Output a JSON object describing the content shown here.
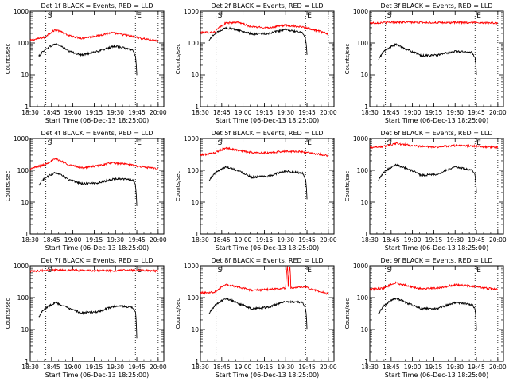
{
  "chart_data": [
    {
      "type": "line",
      "title": "Det 1f BLACK = Events, RED = LLD",
      "xlabel": "Start Time (06-Dec-13 18:25:00)",
      "ylabel": "Counts/sec",
      "y_scale": "log",
      "ylim": [
        1,
        1000
      ],
      "yticks": [
        "1",
        "10",
        "100",
        "1000"
      ],
      "xlim": [
        18.5,
        20.0667
      ],
      "xticks": [
        "18:30",
        "18:45",
        "19:00",
        "19:15",
        "19:30",
        "19:45",
        "20:00"
      ],
      "markers": [
        {
          "time": "18:41",
          "label": "S"
        },
        {
          "time": "19:44",
          "label": "E"
        }
      ],
      "series": [
        {
          "color": "#ff0000",
          "x": [
            18.5,
            18.6667,
            18.8,
            18.95,
            19.1,
            19.3,
            19.45,
            19.6,
            19.8,
            20.0
          ],
          "values": [
            120,
            150,
            260,
            170,
            140,
            170,
            210,
            180,
            140,
            115
          ]
        },
        {
          "color": "#000000",
          "x": [
            18.6,
            18.6667,
            18.8,
            18.95,
            19.1,
            19.3,
            19.5,
            19.7,
            19.733,
            19.75
          ],
          "values": [
            38,
            60,
            95,
            55,
            42,
            55,
            80,
            60,
            40,
            10
          ]
        }
      ]
    },
    {
      "type": "line",
      "title": "Det 2f BLACK = Events, RED = LLD",
      "xlabel": "Start Time (06-Dec-13 18:25:00)",
      "ylabel": "Counts/sec",
      "y_scale": "log",
      "ylim": [
        1,
        1000
      ],
      "yticks": [
        "1",
        "10",
        "100",
        "1000"
      ],
      "xlim": [
        18.5,
        20.0667
      ],
      "xticks": [
        "18:30",
        "18:45",
        "19:00",
        "19:15",
        "19:30",
        "19:45",
        "20:00"
      ],
      "markers": [
        {
          "time": "18:41",
          "label": "S"
        },
        {
          "time": "19:44",
          "label": "E"
        }
      ],
      "series": [
        {
          "color": "#ff0000",
          "x": [
            18.5,
            18.6667,
            18.8,
            18.95,
            19.05,
            19.1,
            19.3,
            19.5,
            19.7,
            19.85,
            20.0
          ],
          "values": [
            210,
            220,
            420,
            450,
            350,
            320,
            300,
            360,
            320,
            250,
            190
          ]
        },
        {
          "color": "#000000",
          "x": [
            18.6,
            18.6667,
            18.8,
            18.95,
            19.1,
            19.3,
            19.5,
            19.7,
            19.733,
            19.75
          ],
          "values": [
            120,
            190,
            300,
            250,
            190,
            200,
            260,
            210,
            130,
            40
          ]
        }
      ]
    },
    {
      "type": "line",
      "title": "Det 3f BLACK = Events, RED = LLD",
      "xlabel": "Start Time (06-Dec-13 18:25:00)",
      "ylabel": "Counts/sec",
      "y_scale": "log",
      "ylim": [
        1,
        1000
      ],
      "yticks": [
        "1",
        "10",
        "100",
        "1000"
      ],
      "xlim": [
        18.5,
        20.0667
      ],
      "xticks": [
        "18:30",
        "18:45",
        "19:00",
        "19:15",
        "19:30",
        "19:45",
        "20:00"
      ],
      "markers": [
        {
          "time": "18:41",
          "label": "S"
        },
        {
          "time": "19:44",
          "label": "E"
        }
      ],
      "series": [
        {
          "color": "#ff0000",
          "x": [
            18.5,
            18.8,
            19.1,
            19.4,
            19.7,
            20.0
          ],
          "values": [
            420,
            450,
            440,
            430,
            440,
            420
          ]
        },
        {
          "color": "#000000",
          "x": [
            18.6,
            18.6667,
            18.8,
            18.95,
            19.1,
            19.3,
            19.5,
            19.7,
            19.733,
            19.75
          ],
          "values": [
            28,
            55,
            90,
            60,
            40,
            42,
            55,
            50,
            35,
            10
          ]
        }
      ]
    },
    {
      "type": "line",
      "title": "Det 4f BLACK = Events, RED = LLD",
      "xlabel": "Start Time (06-Dec-13 18:25:00)",
      "ylabel": "Counts/sec",
      "y_scale": "log",
      "ylim": [
        1,
        1000
      ],
      "yticks": [
        "1",
        "10",
        "100",
        "1000"
      ],
      "xlim": [
        18.5,
        20.0667
      ],
      "xticks": [
        "18:30",
        "18:45",
        "19:00",
        "19:15",
        "19:30",
        "19:45",
        "20:00"
      ],
      "markers": [
        {
          "time": "18:41",
          "label": "S"
        },
        {
          "time": "19:44",
          "label": "E"
        }
      ],
      "series": [
        {
          "color": "#ff0000",
          "x": [
            18.5,
            18.6667,
            18.8,
            18.95,
            19.1,
            19.3,
            19.45,
            19.6,
            19.8,
            20.0
          ],
          "values": [
            110,
            150,
            230,
            150,
            120,
            140,
            170,
            160,
            130,
            110
          ]
        },
        {
          "color": "#000000",
          "x": [
            18.6,
            18.6667,
            18.8,
            18.95,
            19.1,
            19.3,
            19.5,
            19.7,
            19.733,
            19.75
          ],
          "values": [
            35,
            55,
            85,
            50,
            38,
            40,
            55,
            50,
            35,
            8
          ]
        }
      ]
    },
    {
      "type": "line",
      "title": "Det 5f BLACK = Events, RED = LLD",
      "xlabel": "Start Time (06-Dec-13 18:25:00)",
      "ylabel": "Counts/sec",
      "y_scale": "log",
      "ylim": [
        1,
        1000
      ],
      "yticks": [
        "1",
        "10",
        "100",
        "1000"
      ],
      "xlim": [
        18.5,
        20.0667
      ],
      "xticks": [
        "18:30",
        "18:45",
        "19:00",
        "19:15",
        "19:30",
        "19:45",
        "20:00"
      ],
      "markers": [
        {
          "time": "18:41",
          "label": "S"
        },
        {
          "time": "19:44",
          "label": "E"
        }
      ],
      "series": [
        {
          "color": "#ff0000",
          "x": [
            18.5,
            18.6667,
            18.8,
            18.95,
            19.1,
            19.3,
            19.5,
            19.7,
            19.85,
            20.0
          ],
          "values": [
            300,
            350,
            500,
            420,
            360,
            350,
            400,
            380,
            330,
            290
          ]
        },
        {
          "color": "#000000",
          "x": [
            18.6,
            18.6667,
            18.8,
            18.95,
            19.1,
            19.3,
            19.5,
            19.7,
            19.733,
            19.75
          ],
          "values": [
            45,
            80,
            130,
            95,
            60,
            65,
            95,
            80,
            50,
            12
          ]
        }
      ]
    },
    {
      "type": "line",
      "title": "Det 6f BLACK = Events, RED = LLD",
      "xlabel": "Start Time (06-Dec-13 18:25:00)",
      "ylabel": "Counts/sec",
      "y_scale": "log",
      "ylim": [
        1,
        1000
      ],
      "yticks": [
        "1",
        "10",
        "100",
        "1000"
      ],
      "xlim": [
        18.5,
        20.0667
      ],
      "xticks": [
        "18:30",
        "18:45",
        "19:00",
        "19:15",
        "19:30",
        "19:45",
        "20:00"
      ],
      "markers": [
        {
          "time": "18:41",
          "label": "S"
        },
        {
          "time": "19:44",
          "label": "E"
        }
      ],
      "series": [
        {
          "color": "#ff0000",
          "x": [
            18.5,
            18.6667,
            18.8,
            18.95,
            19.1,
            19.3,
            19.5,
            19.7,
            19.85,
            20.0
          ],
          "values": [
            520,
            560,
            700,
            620,
            560,
            540,
            600,
            580,
            540,
            520
          ]
        },
        {
          "color": "#000000",
          "x": [
            18.6,
            18.6667,
            18.8,
            18.95,
            19.1,
            19.3,
            19.5,
            19.7,
            19.733,
            19.75
          ],
          "values": [
            45,
            85,
            150,
            110,
            70,
            75,
            130,
            100,
            70,
            20
          ]
        }
      ]
    },
    {
      "type": "line",
      "title": "Det 7f BLACK = Events, RED = LLD",
      "xlabel": "Start Time (06-Dec-13 18:25:00)",
      "ylabel": "Counts/sec",
      "y_scale": "log",
      "ylim": [
        1,
        1000
      ],
      "yticks": [
        "1",
        "10",
        "100",
        "1000"
      ],
      "xlim": [
        18.5,
        20.0667
      ],
      "xticks": [
        "18:30",
        "18:45",
        "19:00",
        "19:15",
        "19:30",
        "19:45",
        "20:00"
      ],
      "markers": [
        {
          "time": "18:41",
          "label": "S"
        },
        {
          "time": "19:44",
          "label": "E"
        }
      ],
      "series": [
        {
          "color": "#ff0000",
          "x": [
            18.5,
            18.8,
            19.1,
            19.4,
            19.7,
            20.0
          ],
          "values": [
            680,
            740,
            720,
            700,
            730,
            700
          ]
        },
        {
          "color": "#000000",
          "x": [
            18.6,
            18.6667,
            18.8,
            18.95,
            19.1,
            19.3,
            19.5,
            19.7,
            19.733,
            19.75
          ],
          "values": [
            25,
            45,
            70,
            45,
            33,
            36,
            55,
            50,
            35,
            5
          ]
        }
      ]
    },
    {
      "type": "line",
      "title": "Det 8f BLACK = Events, RED = LLD",
      "xlabel": "Start Time (06-Dec-13 18:25:00)",
      "ylabel": "Counts/sec",
      "y_scale": "log",
      "ylim": [
        1,
        1000
      ],
      "yticks": [
        "1",
        "10",
        "100",
        "1000"
      ],
      "xlim": [
        18.5,
        20.0667
      ],
      "xticks": [
        "18:30",
        "18:45",
        "19:00",
        "19:15",
        "19:30",
        "19:45",
        "20:00"
      ],
      "markers": [
        {
          "time": "18:41",
          "label": "S"
        },
        {
          "time": "19:44",
          "label": "E"
        }
      ],
      "series": [
        {
          "color": "#ff0000",
          "x": [
            18.5,
            18.6667,
            18.8,
            18.95,
            19.1,
            19.3,
            19.5,
            19.52,
            19.53,
            19.55,
            19.56,
            19.7,
            19.85,
            20.0
          ],
          "values": [
            140,
            150,
            260,
            210,
            170,
            180,
            200,
            1000,
            200,
            1000,
            200,
            220,
            170,
            130
          ]
        },
        {
          "color": "#000000",
          "x": [
            18.6,
            18.6667,
            18.8,
            18.95,
            19.1,
            19.3,
            19.5,
            19.7,
            19.733,
            19.75
          ],
          "values": [
            30,
            55,
            95,
            65,
            45,
            50,
            75,
            70,
            45,
            10
          ]
        }
      ]
    },
    {
      "type": "line",
      "title": "Det 9f BLACK = Events, RED = LLD",
      "xlabel": "Start Time (06-Dec-13 18:25:00)",
      "ylabel": "Counts/sec",
      "y_scale": "log",
      "ylim": [
        1,
        1000
      ],
      "yticks": [
        "1",
        "10",
        "100",
        "1000"
      ],
      "xlim": [
        18.5,
        20.0667
      ],
      "xticks": [
        "18:30",
        "18:45",
        "19:00",
        "19:15",
        "19:30",
        "19:45",
        "20:00"
      ],
      "markers": [
        {
          "time": "18:41",
          "label": "S"
        },
        {
          "time": "19:44",
          "label": "E"
        }
      ],
      "series": [
        {
          "color": "#ff0000",
          "x": [
            18.5,
            18.6667,
            18.8,
            18.95,
            19.1,
            19.3,
            19.5,
            19.7,
            19.85,
            20.0
          ],
          "values": [
            180,
            200,
            290,
            230,
            190,
            200,
            250,
            230,
            200,
            180
          ]
        },
        {
          "color": "#000000",
          "x": [
            18.6,
            18.6667,
            18.8,
            18.95,
            19.1,
            19.3,
            19.5,
            19.7,
            19.733,
            19.75
          ],
          "values": [
            30,
            55,
            95,
            65,
            45,
            45,
            70,
            60,
            45,
            10
          ]
        }
      ]
    }
  ]
}
